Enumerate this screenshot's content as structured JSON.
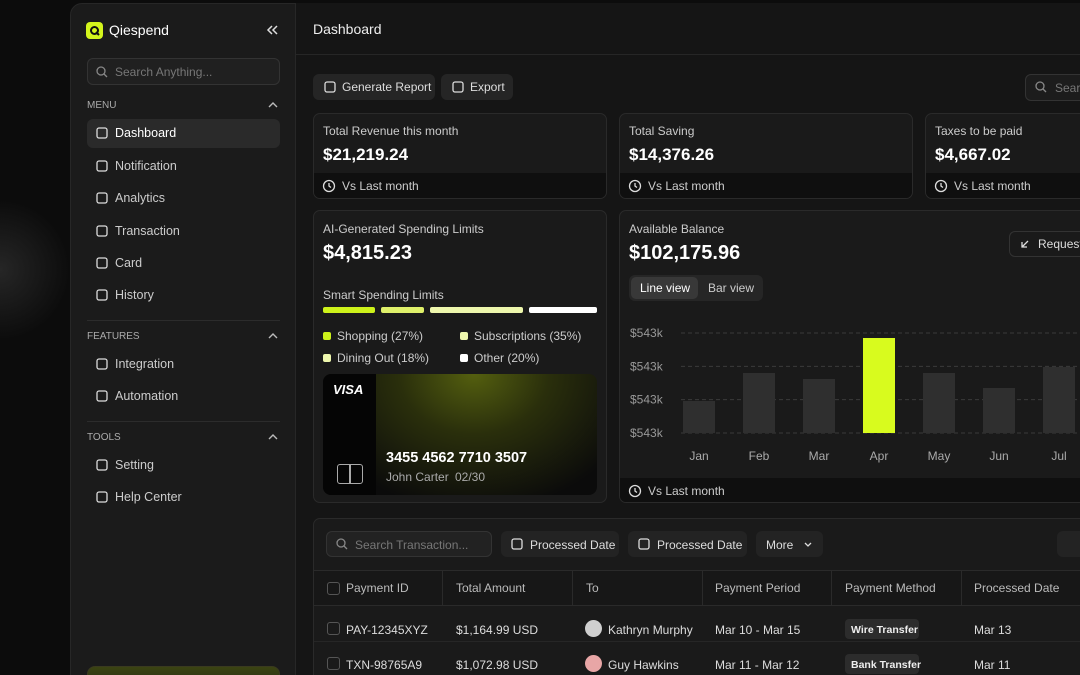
{
  "brand": "Qiespend",
  "sidebar": {
    "search": "Search Anything...",
    "sections": [
      {
        "title": "MENU",
        "items": [
          "Dashboard",
          "Notification",
          "Analytics",
          "Transaction",
          "Card",
          "History"
        ]
      },
      {
        "title": "FEATURES",
        "items": [
          "Integration",
          "Automation"
        ]
      },
      {
        "title": "TOOLS",
        "items": [
          "Setting",
          "Help Center"
        ]
      }
    ]
  },
  "header": {
    "title": "Dashboard"
  },
  "toolbar": {
    "buttons": [
      "Generate Report",
      "Export"
    ],
    "search": "Search"
  },
  "stats": [
    {
      "label": "Total Revenue this month",
      "value": "$21,219.24",
      "footer": "Vs Last month"
    },
    {
      "label": "Total Saving",
      "value": "$14,376.26",
      "footer": "Vs Last month"
    },
    {
      "label": "Taxes to be paid",
      "value": "$4,667.02",
      "footer": "Vs Last month"
    }
  ],
  "spending": {
    "title": "AI-Generated Spending Limits",
    "amount": "$4,815.23",
    "subtitle": "Smart Spending Limits",
    "legend": [
      "Shopping (27%)",
      "Subscriptions (35%)",
      "Dining Out (18%)",
      "Other (20%)"
    ],
    "card": {
      "brand": "VISA",
      "number": "3455 4562 7710 3507",
      "holder": "John Carter",
      "expiry": "02/30"
    }
  },
  "balance": {
    "title": "Available Balance",
    "amount": "$102,175.96",
    "request": "Request",
    "tabs": [
      "Line view",
      "Bar view"
    ],
    "chart": {
      "type": "bar",
      "y_labels": [
        "$543k",
        "$543k",
        "$543k",
        "$543k"
      ],
      "categories": [
        "Jan",
        "Feb",
        "Mar",
        "Apr",
        "May",
        "Jun",
        "Jul"
      ],
      "values": [
        32,
        60,
        54,
        95,
        60,
        45,
        66
      ],
      "ylim": [
        0,
        100
      ],
      "color": "#2f2f2f",
      "highlight_color": "#d8fb1e",
      "highlight_index": 3
    },
    "footer": "Vs Last month"
  },
  "transactions": {
    "search": "Search Transaction...",
    "filters": [
      "Processed Date",
      "Processed Date",
      "More"
    ],
    "columns": [
      "Payment ID",
      "Total Amount",
      "To",
      "Payment Period",
      "Payment Method",
      "Processed Date"
    ],
    "rows": [
      [
        "PAY-12345XYZ",
        "$1,164.99 USD",
        "Kathryn Murphy",
        "Mar 10 -  Mar 15",
        "Wire Transfer",
        "Mar 13"
      ],
      [
        "TXN-98765A9",
        "$1,072.98 USD",
        "Guy Hawkins",
        "Mar 11 -  Mar 12",
        "Bank Transfer",
        "Mar 11"
      ]
    ]
  }
}
